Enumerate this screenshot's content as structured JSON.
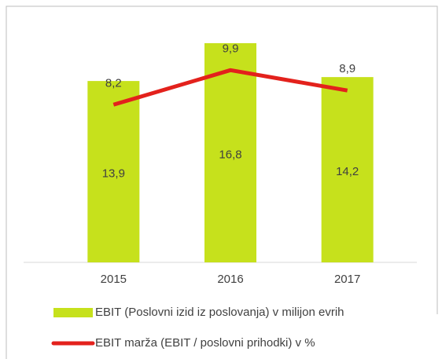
{
  "chart_data": {
    "type": "bar-line",
    "categories": [
      "2015",
      "2016",
      "2017"
    ],
    "series": [
      {
        "name": "EBIT (Poslovni izid iz poslovanja) v milijon evrih",
        "type": "bar",
        "color": "#c6e11c",
        "values": [
          13.9,
          16.8,
          14.2
        ],
        "value_labels": [
          "13,9",
          "16,8",
          "14,2"
        ]
      },
      {
        "name": "EBIT marža (EBIT / poslovni prihodki) v %",
        "type": "line",
        "axis": "y2",
        "color": "#e3211c",
        "values": [
          8.2,
          9.9,
          8.9
        ],
        "value_labels": [
          "8,2",
          "9,9",
          "8,9"
        ]
      }
    ],
    "ylim": [
      0,
      18
    ],
    "y2lim": [
      0.44,
      12
    ],
    "legend": "bottom"
  }
}
